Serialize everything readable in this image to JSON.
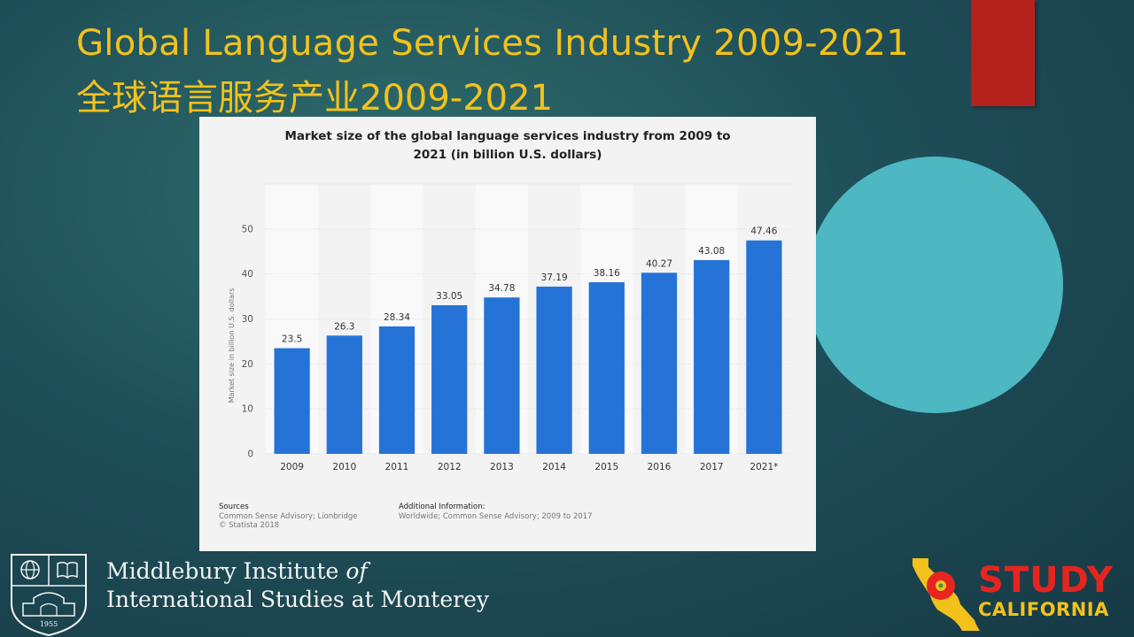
{
  "slide": {
    "title_en": "Global Language Services Industry 2009-2021",
    "title_zh": "全球语言服务产业2009-2021"
  },
  "colors": {
    "accent_yellow": "#f2c21b",
    "red_bar": "#b5211d",
    "circle": "#4db7c2",
    "bar": "#2673d8"
  },
  "chart_data": {
    "type": "bar",
    "title": "Market size of the global language services industry from 2009 to 2021 (in billion U.S. dollars)",
    "title_line1": "Market size of the global language services industry from 2009 to",
    "title_line2": "2021 (in billion U.S. dollars)",
    "categories": [
      "2009",
      "2010",
      "2011",
      "2012",
      "2013",
      "2014",
      "2015",
      "2016",
      "2017",
      "2021*"
    ],
    "values": [
      23.5,
      26.3,
      28.34,
      33.05,
      34.78,
      37.19,
      38.16,
      40.27,
      43.08,
      47.46
    ],
    "value_labels": [
      "23.5",
      "26.3",
      "28.34",
      "33.05",
      "34.78",
      "37.19",
      "38.16",
      "40.27",
      "43.08",
      "47.46"
    ],
    "xlabel": "",
    "ylabel": "Market size in billion U.S. dollars",
    "ylim": [
      0,
      60
    ],
    "yticks": [
      0,
      10,
      20,
      30,
      40,
      50
    ],
    "grid": true,
    "legend": "none"
  },
  "footer": {
    "sources_label": "Sources",
    "sources_text": "Common Sense Advisory; Lionbridge",
    "copyright": "© Statista 2018",
    "info_label": "Additional Information:",
    "info_text": "Worldwide; Common Sense Advisory; 2009 to 2017"
  },
  "institute": {
    "line1": "Middlebury Institute ",
    "line1_italic": "of",
    "line2": "International Studies at Monterey",
    "year": "1955"
  },
  "study_logo": {
    "word1": "STUDY",
    "word2": "CALIFORNIA"
  }
}
